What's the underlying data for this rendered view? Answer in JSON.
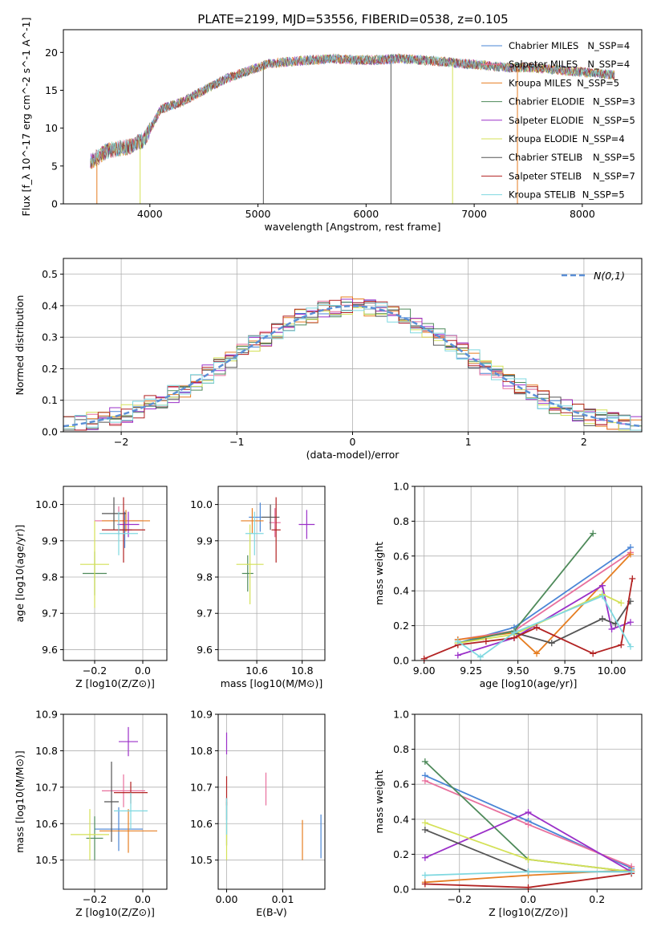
{
  "figure_title": "PLATE=2199, MJD=53556, FIBERID=0538, z=0.105",
  "models": [
    {
      "name": "Chabrier MILES",
      "nssp": "4",
      "color": "#4a86d6"
    },
    {
      "name": "Salpeter MILES",
      "nssp": "4",
      "color": "#e8709d"
    },
    {
      "name": "Kroupa MILES",
      "nssp": "5",
      "color": "#e67e22"
    },
    {
      "name": "Chabrier ELODIE",
      "nssp": "3",
      "color": "#4e8a5a"
    },
    {
      "name": "Salpeter ELODIE",
      "nssp": "5",
      "color": "#9b30c8"
    },
    {
      "name": "Kroupa ELODIE",
      "nssp": "4",
      "color": "#d4e157"
    },
    {
      "name": "Chabrier STELIB",
      "nssp": "5",
      "color": "#555555"
    },
    {
      "name": "Salpeter STELIB",
      "nssp": "7",
      "color": "#b22222"
    },
    {
      "name": "Kroupa STELIB",
      "nssp": "5",
      "color": "#7fd8e0"
    }
  ],
  "chart_data": [
    {
      "id": "spectrum",
      "type": "line",
      "title": "PLATE=2199, MJD=53556, FIBERID=0538, z=0.105",
      "xlabel": "wavelength [Angstrom, rest frame]",
      "ylabel": "Flux [f_λ 10^-17 erg cm^-2 s^-1 A^-1]",
      "xlim": [
        3200,
        8550
      ],
      "ylim": [
        0,
        23
      ],
      "xticks": [
        "4000",
        "5000",
        "6000",
        "7000",
        "8000"
      ],
      "yticks": [
        "0",
        "5",
        "10",
        "15",
        "20"
      ],
      "x": [
        3450,
        3600,
        3800,
        3950,
        4100,
        4300,
        4500,
        4700,
        4900,
        5100,
        5300,
        5500,
        5700,
        5900,
        6100,
        6300,
        6500,
        6700,
        6900,
        7100,
        7300,
        7500,
        7700,
        7900,
        8100,
        8300
      ],
      "y": [
        5.5,
        7.0,
        7.5,
        8.5,
        12.5,
        13.5,
        15.0,
        16.5,
        17.5,
        18.5,
        18.8,
        19.0,
        19.2,
        19.0,
        19.0,
        19.2,
        19.0,
        18.8,
        18.5,
        18.3,
        18.0,
        18.0,
        17.8,
        17.5,
        17.3,
        17.0
      ],
      "grid": false,
      "legend": "right"
    },
    {
      "id": "residuals",
      "type": "line",
      "xlabel": "(data-model)/error",
      "ylabel": "Normed distribution",
      "xlim": [
        -2.5,
        2.5
      ],
      "ylim": [
        0,
        0.55
      ],
      "xticks": [
        "−2",
        "−1",
        "0",
        "1",
        "2"
      ],
      "yticks": [
        "0.0",
        "0.1",
        "0.2",
        "0.3",
        "0.4",
        "0.5"
      ],
      "reference_label": "N(0,1)",
      "grid": true,
      "legend": "top-right"
    },
    {
      "id": "age-vs-Z",
      "type": "scatter",
      "xlabel": "Z [log10(Z/Z⊙)]",
      "ylabel": "age [log10(age/yr)]",
      "xlim": [
        -0.33,
        0.1
      ],
      "ylim": [
        9.57,
        10.05
      ],
      "xticks": [
        "−0.2",
        "0.0"
      ],
      "yticks": [
        "9.6",
        "9.7",
        "9.8",
        "9.9",
        "10.0"
      ],
      "series": [
        {
          "x": -0.075,
          "y": 9.93,
          "xerr": 0.06,
          "yerr": 0.1
        },
        {
          "x": -0.1,
          "y": 9.955,
          "xerr": 0.2,
          "yerr": 0.08
        },
        {
          "x": -0.07,
          "y": 9.955,
          "xerr": 0.2,
          "yerr": 0.06
        },
        {
          "x": -0.2,
          "y": 9.81,
          "xerr": 0.1,
          "yerr": 0.12
        },
        {
          "x": -0.06,
          "y": 9.945,
          "xerr": 0.09,
          "yerr": 0.07
        },
        {
          "x": -0.2,
          "y": 9.835,
          "xerr": 0.12,
          "yerr": 0.24
        },
        {
          "x": -0.12,
          "y": 9.975,
          "xerr": 0.1,
          "yerr": 0.09
        },
        {
          "x": -0.08,
          "y": 9.93,
          "xerr": 0.18,
          "yerr": 0.18
        },
        {
          "x": -0.1,
          "y": 9.92,
          "xerr": 0.16,
          "yerr": 0.12
        }
      ]
    },
    {
      "id": "age-vs-mass",
      "type": "scatter",
      "xlabel": "mass [log10(M/M⊙)]",
      "ylabel": "",
      "xlim": [
        10.43,
        10.9
      ],
      "ylim": [
        9.57,
        10.05
      ],
      "xticks": [
        "10.6",
        "10.8"
      ],
      "yticks": [
        "9.6",
        "9.7",
        "9.8",
        "9.9",
        "10.0"
      ],
      "series": [
        {
          "x": 10.615,
          "y": 9.965,
          "xerr": 0.1,
          "yerr": 0.08
        },
        {
          "x": 10.68,
          "y": 9.95,
          "xerr": 0.05,
          "yerr": 0.08
        },
        {
          "x": 10.58,
          "y": 9.955,
          "xerr": 0.1,
          "yerr": 0.07
        },
        {
          "x": 10.56,
          "y": 9.81,
          "xerr": 0.05,
          "yerr": 0.1
        },
        {
          "x": 10.82,
          "y": 9.945,
          "xerr": 0.07,
          "yerr": 0.08
        },
        {
          "x": 10.57,
          "y": 9.835,
          "xerr": 0.12,
          "yerr": 0.22
        },
        {
          "x": 10.66,
          "y": 9.965,
          "xerr": 0.08,
          "yerr": 0.07
        },
        {
          "x": 10.685,
          "y": 9.93,
          "xerr": 0.04,
          "yerr": 0.18
        },
        {
          "x": 10.59,
          "y": 9.92,
          "xerr": 0.08,
          "yerr": 0.12
        }
      ]
    },
    {
      "id": "weight-vs-age",
      "type": "line",
      "xlabel": "age [log10(age/yr)]",
      "ylabel": "mass weight",
      "xlim": [
        8.95,
        10.16
      ],
      "ylim": [
        0,
        1.0
      ],
      "xticks": [
        "9.00",
        "9.25",
        "9.50",
        "9.75",
        "10.00"
      ],
      "yticks": [
        "0.0",
        "0.2",
        "0.4",
        "0.6",
        "0.8",
        "1.0"
      ],
      "series": [
        {
          "x": [
            9.18,
            9.48,
            10.1
          ],
          "y": [
            0.1,
            0.19,
            0.65
          ]
        },
        {
          "x": [
            9.18,
            9.48,
            10.1
          ],
          "y": [
            0.12,
            0.17,
            0.62
          ]
        },
        {
          "x": [
            9.18,
            9.48,
            9.6,
            10.1
          ],
          "y": [
            0.12,
            0.16,
            0.04,
            0.61
          ]
        },
        {
          "x": [
            9.18,
            9.48,
            9.9
          ],
          "y": [
            0.1,
            0.17,
            0.73
          ]
        },
        {
          "x": [
            9.18,
            9.48,
            9.95,
            10.0,
            10.1
          ],
          "y": [
            0.03,
            0.13,
            0.43,
            0.18,
            0.22
          ]
        },
        {
          "x": [
            9.18,
            9.48,
            9.95,
            10.05
          ],
          "y": [
            0.1,
            0.15,
            0.38,
            0.33
          ]
        },
        {
          "x": [
            9.48,
            9.68,
            9.95,
            10.02,
            10.1
          ],
          "y": [
            0.16,
            0.1,
            0.24,
            0.21,
            0.34
          ]
        },
        {
          "x": [
            9.0,
            9.18,
            9.33,
            9.48,
            9.6,
            9.9,
            10.05,
            10.11
          ],
          "y": [
            0.01,
            0.09,
            0.11,
            0.13,
            0.19,
            0.04,
            0.09,
            0.47
          ]
        },
        {
          "x": [
            9.18,
            9.3,
            9.48,
            9.95,
            10.1
          ],
          "y": [
            0.11,
            0.02,
            0.16,
            0.37,
            0.08
          ]
        }
      ]
    },
    {
      "id": "mass-vs-Z",
      "type": "scatter",
      "xlabel": "Z [log10(Z/Z⊙)]",
      "ylabel": "mass [log10(M/M⊙)]",
      "xlim": [
        -0.33,
        0.1
      ],
      "ylim": [
        10.42,
        10.9
      ],
      "xticks": [
        "−0.2",
        "0.0"
      ],
      "yticks": [
        "10.5",
        "10.6",
        "10.7",
        "10.8",
        "10.9"
      ],
      "series": [
        {
          "x": -0.1,
          "y": 10.585,
          "xerr": 0.2,
          "yerr": 0.12
        },
        {
          "x": -0.08,
          "y": 10.69,
          "xerr": 0.18,
          "yerr": 0.09
        },
        {
          "x": -0.06,
          "y": 10.58,
          "xerr": 0.24,
          "yerr": 0.12
        },
        {
          "x": -0.2,
          "y": 10.56,
          "xerr": 0.07,
          "yerr": 0.12
        },
        {
          "x": -0.06,
          "y": 10.825,
          "xerr": 0.08,
          "yerr": 0.08
        },
        {
          "x": -0.22,
          "y": 10.57,
          "xerr": 0.16,
          "yerr": 0.14
        },
        {
          "x": -0.13,
          "y": 10.66,
          "xerr": 0.06,
          "yerr": 0.22
        },
        {
          "x": -0.05,
          "y": 10.685,
          "xerr": 0.14,
          "yerr": 0.06
        },
        {
          "x": -0.05,
          "y": 10.635,
          "xerr": 0.14,
          "yerr": 0.1
        }
      ]
    },
    {
      "id": "mass-vs-EBV",
      "type": "scatter",
      "xlabel": "E(B-V)",
      "ylabel": "",
      "xlim": [
        -0.0015,
        0.0175
      ],
      "ylim": [
        10.42,
        10.9
      ],
      "xticks": [
        "0.00",
        "0.01"
      ],
      "yticks": [
        "10.5",
        "10.6",
        "10.7",
        "10.8",
        "10.9"
      ],
      "series": [
        {
          "x": 0.0168,
          "y": 10.565,
          "yerr": 0.12
        },
        {
          "x": 0.007,
          "y": 10.695,
          "yerr": 0.09
        },
        {
          "x": 0.0135,
          "y": 10.555,
          "yerr": 0.11
        },
        {
          "x": 0.0,
          "y": 10.6,
          "yerr": 0.12
        },
        {
          "x": 0.0,
          "y": 10.82,
          "yerr": 0.06
        },
        {
          "x": 0.0,
          "y": 10.55,
          "yerr": 0.1
        },
        {
          "x": 0.0,
          "y": 10.64,
          "yerr": 0.06
        },
        {
          "x": 0.0,
          "y": 10.69,
          "yerr": 0.08
        },
        {
          "x": 0.0,
          "y": 10.62,
          "yerr": 0.1
        }
      ]
    },
    {
      "id": "weight-vs-Z",
      "type": "line",
      "xlabel": "Z [log10(Z/Z⊙)]",
      "ylabel": "mass weight",
      "xlim": [
        -0.33,
        0.33
      ],
      "ylim": [
        0,
        1.0
      ],
      "xticks": [
        "−0.2",
        "0.0",
        "0.2"
      ],
      "yticks": [
        "0.0",
        "0.2",
        "0.4",
        "0.6",
        "0.8",
        "1.0"
      ],
      "series": [
        {
          "x": [
            -0.3,
            0.0,
            0.3
          ],
          "y": [
            0.65,
            0.39,
            0.12
          ]
        },
        {
          "x": [
            -0.3,
            0.0,
            0.3
          ],
          "y": [
            0.62,
            0.37,
            0.13
          ]
        },
        {
          "x": [
            -0.3,
            0.0,
            0.3
          ],
          "y": [
            0.04,
            0.08,
            0.11
          ]
        },
        {
          "x": [
            -0.3,
            0.0,
            0.3
          ],
          "y": [
            0.73,
            0.17,
            0.1
          ]
        },
        {
          "x": [
            -0.3,
            0.0,
            0.3
          ],
          "y": [
            0.18,
            0.44,
            0.1
          ]
        },
        {
          "x": [
            -0.3,
            0.0,
            0.3
          ],
          "y": [
            0.38,
            0.17,
            0.1
          ]
        },
        {
          "x": [
            -0.3,
            0.0,
            0.3
          ],
          "y": [
            0.34,
            0.1,
            0.1
          ]
        },
        {
          "x": [
            -0.3,
            0.0,
            0.3
          ],
          "y": [
            0.03,
            0.01,
            0.09
          ]
        },
        {
          "x": [
            -0.3,
            0.0,
            0.3
          ],
          "y": [
            0.08,
            0.1,
            0.1
          ]
        }
      ]
    }
  ]
}
